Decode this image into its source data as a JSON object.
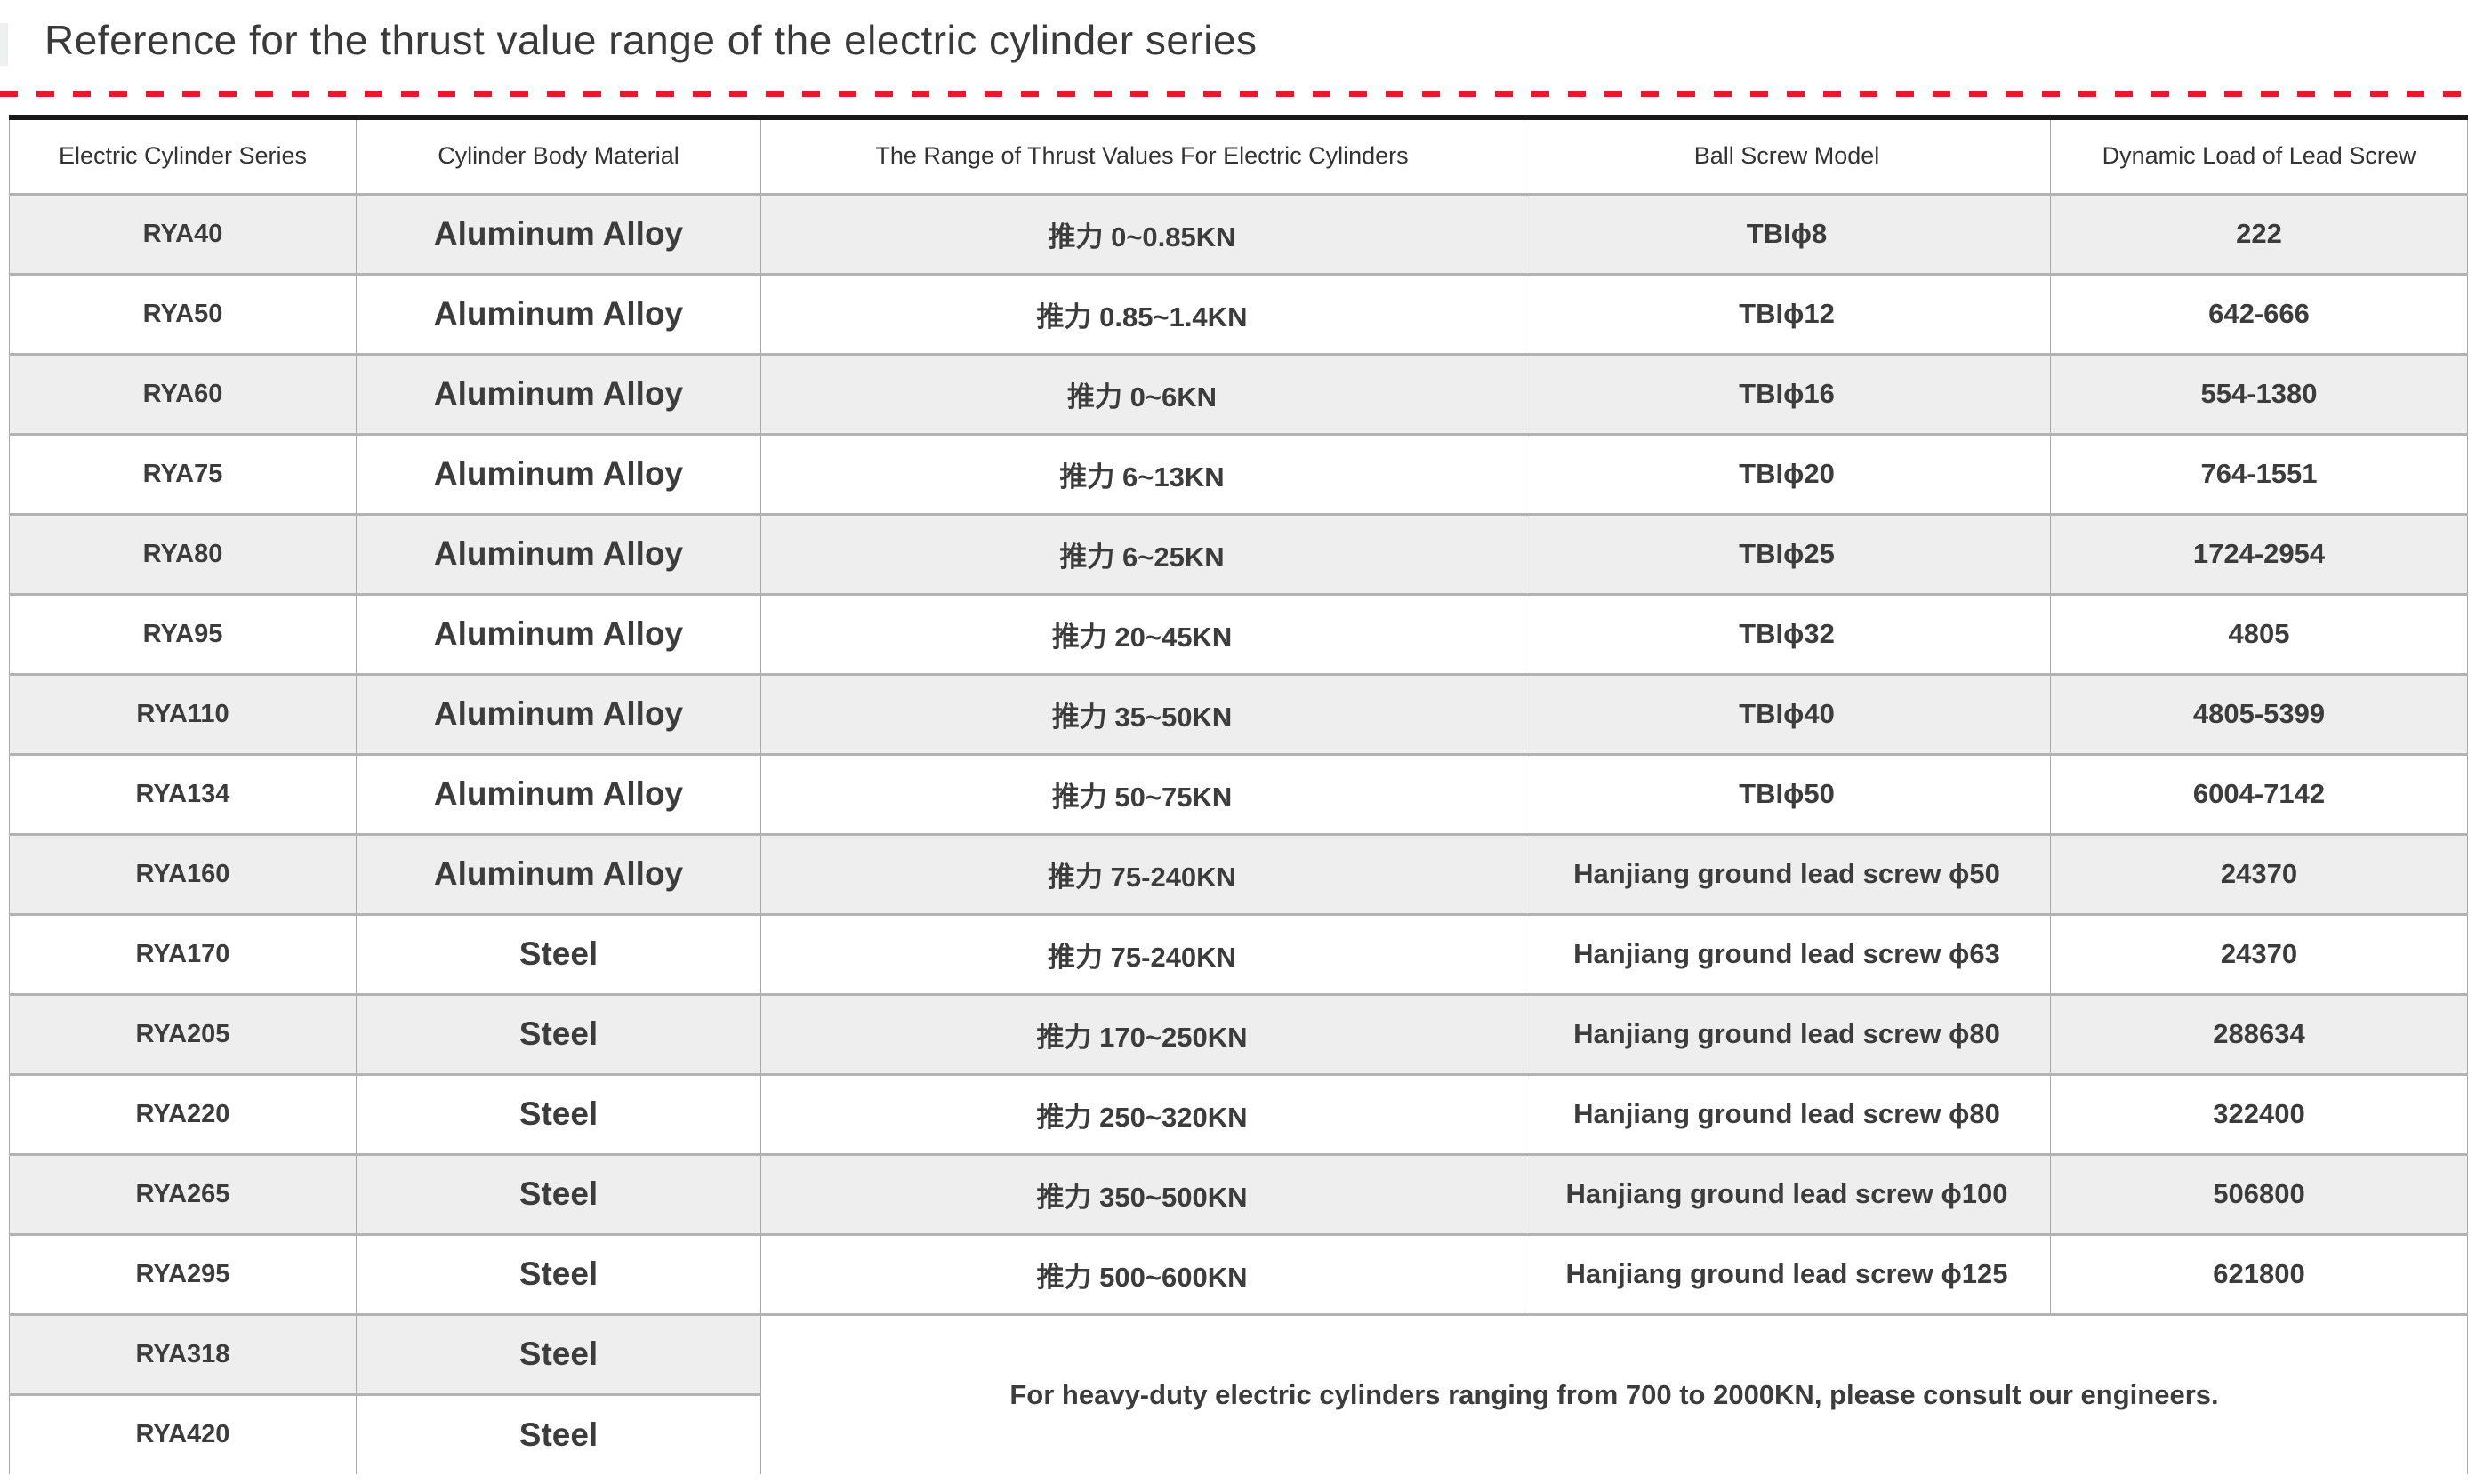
{
  "page": {
    "title": "Reference for the thrust value range of the electric cylinder series"
  },
  "colors": {
    "accent_red": "#e8192c",
    "row_shade_gray": "#eeeeee",
    "table_top_border": "#191919",
    "grid_line": "#a8a8a8",
    "text": "#3c3c3c"
  },
  "table": {
    "headers": [
      "Electric Cylinder Series",
      "Cylinder Body Material",
      "The Range of Thrust Values For Electric Cylinders",
      "Ball Screw Model",
      "Dynamic Load of Lead Screw"
    ],
    "rows": [
      {
        "series": "RYA40",
        "material": "Aluminum Alloy",
        "thrust": "推力 0~0.85KN",
        "ball_screw": "TBIϕ8",
        "dynamic_load": "222"
      },
      {
        "series": "RYA50",
        "material": "Aluminum Alloy",
        "thrust": "推力 0.85~1.4KN",
        "ball_screw": "TBIϕ12",
        "dynamic_load": "642-666"
      },
      {
        "series": "RYA60",
        "material": "Aluminum Alloy",
        "thrust": "推力 0~6KN",
        "ball_screw": "TBIϕ16",
        "dynamic_load": "554-1380"
      },
      {
        "series": "RYA75",
        "material": "Aluminum Alloy",
        "thrust": "推力 6~13KN",
        "ball_screw": "TBIϕ20",
        "dynamic_load": "764-1551"
      },
      {
        "series": "RYA80",
        "material": "Aluminum Alloy",
        "thrust": "推力 6~25KN",
        "ball_screw": "TBIϕ25",
        "dynamic_load": "1724-2954"
      },
      {
        "series": "RYA95",
        "material": "Aluminum Alloy",
        "thrust": "推力 20~45KN",
        "ball_screw": "TBIϕ32",
        "dynamic_load": "4805"
      },
      {
        "series": "RYA110",
        "material": "Aluminum Alloy",
        "thrust": "推力 35~50KN",
        "ball_screw": "TBIϕ40",
        "dynamic_load": "4805-5399"
      },
      {
        "series": "RYA134",
        "material": "Aluminum Alloy",
        "thrust": "推力 50~75KN",
        "ball_screw": "TBIϕ50",
        "dynamic_load": "6004-7142"
      },
      {
        "series": "RYA160",
        "material": "Aluminum Alloy",
        "thrust": "推力 75-240KN",
        "ball_screw": "Hanjiang ground lead screw ϕ50",
        "dynamic_load": "24370"
      },
      {
        "series": "RYA170",
        "material": "Steel",
        "thrust": "推力 75-240KN",
        "ball_screw": "Hanjiang ground lead screw ϕ63",
        "dynamic_load": "24370"
      },
      {
        "series": "RYA205",
        "material": "Steel",
        "thrust": "推力 170~250KN",
        "ball_screw": "Hanjiang ground lead screw ϕ80",
        "dynamic_load": "288634"
      },
      {
        "series": "RYA220",
        "material": "Steel",
        "thrust": "推力 250~320KN",
        "ball_screw": "Hanjiang ground lead screw ϕ80",
        "dynamic_load": "322400"
      },
      {
        "series": "RYA265",
        "material": "Steel",
        "thrust": "推力 350~500KN",
        "ball_screw": "Hanjiang ground lead screw ϕ100",
        "dynamic_load": "506800"
      },
      {
        "series": "RYA295",
        "material": "Steel",
        "thrust": "推力 500~600KN",
        "ball_screw": "Hanjiang ground lead screw ϕ125",
        "dynamic_load": "621800"
      },
      {
        "series": "RYA318",
        "material": "Steel",
        "thrust": null,
        "ball_screw": null,
        "dynamic_load": null
      },
      {
        "series": "RYA420",
        "material": "Steel",
        "thrust": null,
        "ball_screw": null,
        "dynamic_load": null
      }
    ],
    "note": "For heavy-duty electric cylinders ranging from 700 to 2000KN, please consult our engineers."
  }
}
